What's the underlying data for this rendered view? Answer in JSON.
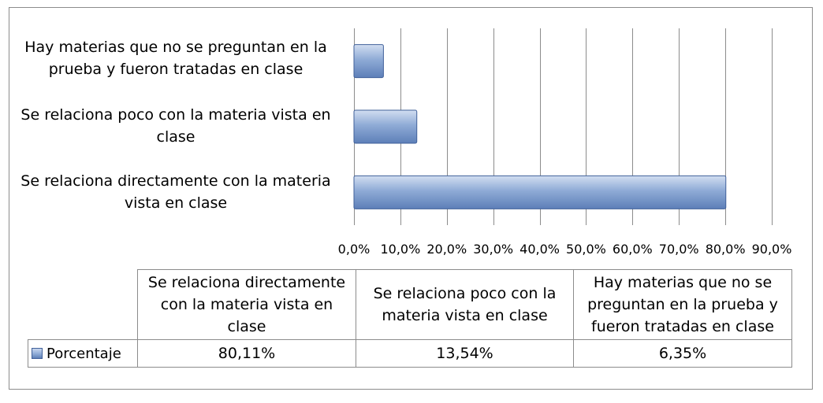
{
  "chart_data": {
    "type": "bar",
    "orientation": "horizontal",
    "categories": [
      "Se relaciona directamente con la materia vista en clase",
      "Se relaciona poco con la materia vista en clase",
      "Hay materias que no se preguntan en la prueba y fueron tratadas en clase"
    ],
    "series": [
      {
        "name": "Porcentaje",
        "values": [
          80.11,
          13.54,
          6.35
        ],
        "labels": [
          "80,11%",
          "13,54%",
          "6,35%"
        ]
      }
    ],
    "xlim": [
      0,
      90
    ],
    "x_ticks": [
      "0,0%",
      "10,0%",
      "20,0%",
      "30,0%",
      "40,0%",
      "50,0%",
      "60,0%",
      "70,0%",
      "80,0%",
      "90,0%"
    ],
    "grid": true,
    "legend": "data-table",
    "bar_color": "#8fabd6"
  }
}
